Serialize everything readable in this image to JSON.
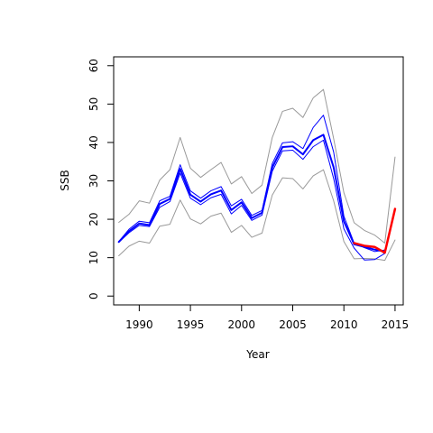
{
  "chart_data": {
    "type": "line",
    "title": "",
    "xlabel": "Year",
    "ylabel": "SSB",
    "xlim": [
      1987.5,
      2015.8
    ],
    "ylim": [
      -2.3,
      62.3
    ],
    "xticks": [
      1990,
      1995,
      2000,
      2005,
      2010,
      2015
    ],
    "yticks": [
      0,
      10,
      20,
      30,
      40,
      50,
      60
    ],
    "grid": false,
    "legend": "none",
    "x": [
      1988,
      1989,
      1990,
      1991,
      1992,
      1993,
      1994,
      1995,
      1996,
      1997,
      1998,
      1999,
      2000,
      2001,
      2002,
      2003,
      2004,
      2005,
      2006,
      2007,
      2008,
      2009,
      2010,
      2011,
      2012,
      2013,
      2014,
      2015
    ],
    "series": [
      {
        "role": "upper-bound",
        "color": "#999999",
        "width": 1,
        "values": [
          19.2,
          21.3,
          24.8,
          24.2,
          30.2,
          32.9,
          41.3,
          33.3,
          30.9,
          32.9,
          34.8,
          29.2,
          31.1,
          26.7,
          28.9,
          41.3,
          48.1,
          48.9,
          46.5,
          51.6,
          53.8,
          41.0,
          26.9,
          19.1,
          17.1,
          15.9,
          13.8,
          36.2
        ]
      },
      {
        "role": "lower-bound",
        "color": "#999999",
        "width": 1,
        "values": [
          10.5,
          13.0,
          14.3,
          13.8,
          18.2,
          18.7,
          25.0,
          20.1,
          18.8,
          20.8,
          21.6,
          16.6,
          18.4,
          15.3,
          16.4,
          26.3,
          30.8,
          30.6,
          27.9,
          31.3,
          32.9,
          24.8,
          14.2,
          9.7,
          9.8,
          9.7,
          9.3,
          14.6
        ]
      },
      {
        "role": "estimate-upper",
        "color": "#0000ff",
        "width": 1,
        "values": [
          14.2,
          17.4,
          19.5,
          19.1,
          24.8,
          26.0,
          34.2,
          27.4,
          25.5,
          27.4,
          28.5,
          23.5,
          25.2,
          21.0,
          22.3,
          34.5,
          39.9,
          40.2,
          38.4,
          43.9,
          47.1,
          37.5,
          20.8,
          13.8,
          12.6,
          11.6,
          12.0,
          null
        ]
      },
      {
        "role": "estimate-lower",
        "color": "#0000ff",
        "width": 1,
        "values": [
          14.0,
          16.5,
          18.4,
          18.1,
          23.1,
          24.6,
          32.0,
          25.5,
          23.8,
          25.6,
          26.5,
          21.4,
          23.6,
          19.7,
          21.1,
          32.5,
          37.8,
          38.0,
          35.6,
          38.9,
          40.6,
          30.6,
          17.5,
          12.5,
          9.4,
          9.5,
          11.1,
          null
        ]
      },
      {
        "role": "estimate",
        "color": "#0000ff",
        "width": 2,
        "values": [
          14.1,
          16.9,
          18.9,
          18.5,
          24.0,
          25.3,
          33.1,
          26.4,
          24.6,
          26.5,
          27.5,
          22.4,
          24.4,
          20.3,
          21.7,
          33.5,
          38.8,
          39.0,
          36.9,
          40.6,
          42.0,
          33.5,
          19.5,
          13.5,
          12.8,
          12.1,
          11.6,
          null
        ]
      },
      {
        "role": "projection",
        "color": "#ff0000",
        "width": 2.5,
        "values": [
          null,
          null,
          null,
          null,
          null,
          null,
          null,
          null,
          null,
          null,
          null,
          null,
          null,
          null,
          null,
          null,
          null,
          null,
          null,
          null,
          null,
          null,
          null,
          13.8,
          13.1,
          12.8,
          11.3,
          22.7
        ]
      }
    ]
  }
}
